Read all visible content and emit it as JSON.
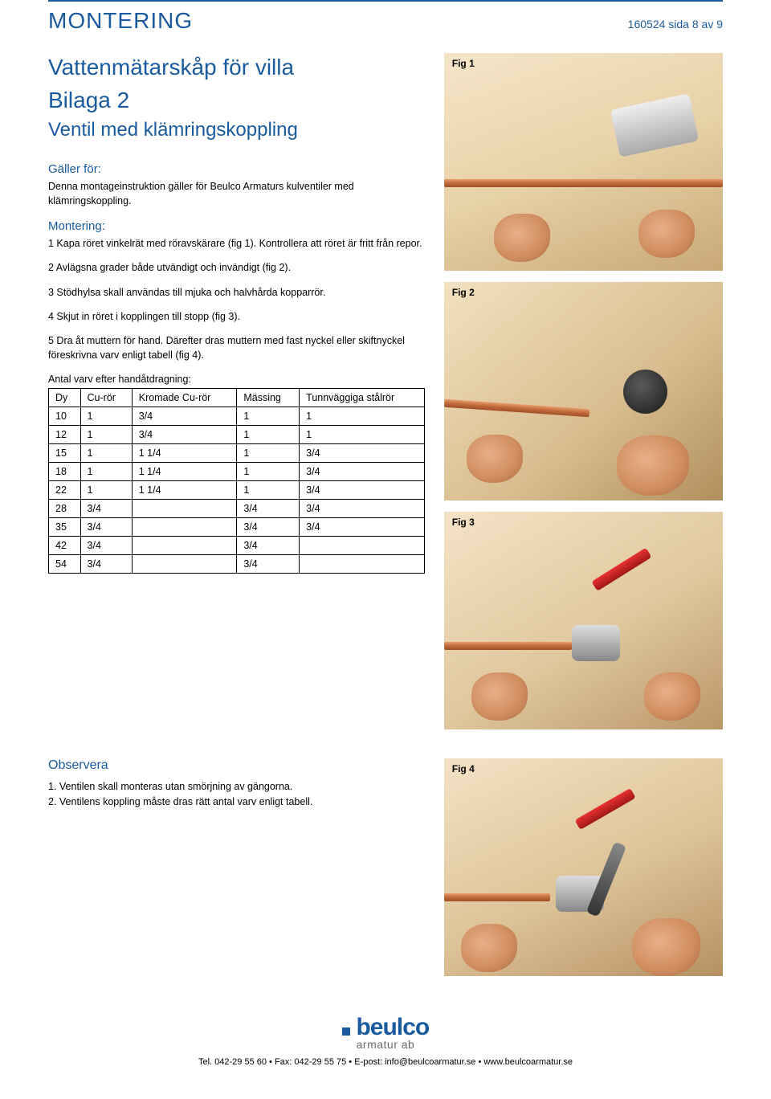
{
  "header": {
    "title": "MONTERING",
    "page_info": "160524 sida 8 av 9"
  },
  "titles": {
    "main": "Vattenmätarskåp för villa",
    "bilaga": "Bilaga 2",
    "subtitle": "Ventil med klämringskoppling"
  },
  "sections": {
    "galler_head": "Gäller för:",
    "galler_body": "Denna montageinstruktion gäller för Beulco Armaturs kulventiler med klämringskoppling.",
    "montering_head": "Montering:",
    "steps": [
      "1 Kapa röret vinkelrät med röravskärare (fig 1). Kontrollera att röret är fritt från repor.",
      "2 Avlägsna grader både utvändigt och invändigt (fig 2).",
      "3 Stödhylsa skall användas till mjuka och halvhårda kopparrör.",
      "4 Skjut in röret i kopplingen till stopp (fig 3).",
      "5 Dra åt muttern för hand. Därefter dras muttern med fast nyckel eller skiftnyckel föreskrivna varv enligt tabell (fig 4)."
    ]
  },
  "table": {
    "caption": "Antal varv efter handåtdragning:",
    "columns": [
      "Dy",
      "Cu-rör",
      "Kromade Cu-rör",
      "Mässing",
      "Tunnväggiga stålrör"
    ],
    "rows": [
      [
        "10",
        "1",
        "3/4",
        "1",
        "1"
      ],
      [
        "12",
        "1",
        "3/4",
        "1",
        "1"
      ],
      [
        "15",
        "1",
        "1 1/4",
        "1",
        "3/4"
      ],
      [
        "18",
        "1",
        "1 1/4",
        "1",
        "3/4"
      ],
      [
        "22",
        "1",
        "1 1/4",
        "1",
        "3/4"
      ],
      [
        "28",
        "3/4",
        "",
        "3/4",
        "3/4"
      ],
      [
        "35",
        "3/4",
        "",
        "3/4",
        "3/4"
      ],
      [
        "42",
        "3/4",
        "",
        "3/4",
        ""
      ],
      [
        "54",
        "3/4",
        "",
        "3/4",
        ""
      ]
    ]
  },
  "observera": {
    "head": "Observera",
    "lines": [
      "1. Ventilen skall monteras utan smörjning av gängorna.",
      "2. Ventilens koppling måste dras rätt antal varv enligt tabell."
    ]
  },
  "figures": {
    "fig1": "Fig 1",
    "fig2": "Fig 2",
    "fig3": "Fig 3",
    "fig4": "Fig 4"
  },
  "footer": {
    "brand": "beulco",
    "brand_sub": "armatur ab",
    "contact": "Tel. 042-29 55 60 • Fax: 042-29 55 75 • E-post: info@beulcoarmatur.se • www.beulcoarmatur.se"
  },
  "colors": {
    "primary_blue": "#1a5a9e",
    "text": "#000000"
  }
}
